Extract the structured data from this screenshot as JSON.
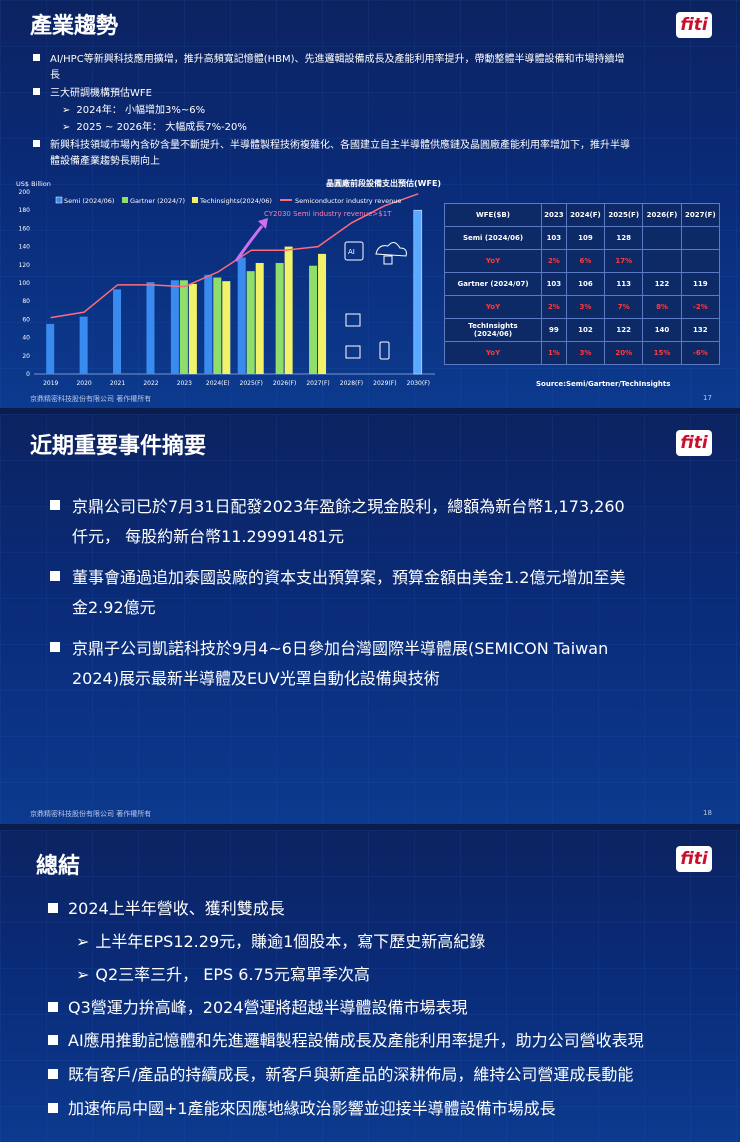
{
  "slide1": {
    "title": "產業趨勢",
    "bullets": [
      "AI/HPC等新興科技應用擴增，推升高頻寬記憶體(HBM)、先進邏輯設備成長及產能利用率提升，帶動整體半導體設備和市場持續增",
      "長",
      "三大研調機構預估WFE",
      "2024年： 小幅增加3%~6%",
      "2025 ~ 2026年： 大幅成長7%-20%",
      "新興科技領域市場內含矽含量不斷提升、半導體製程技術複雜化、各國建立自主半導體供應鏈及晶圓廠產能利用率增加下，推升半導",
      "體設備產業趨勢長期向上"
    ],
    "footer": "京鼎精密科技股份有限公司 著作權所有",
    "page": "17",
    "logo": "fiti"
  },
  "chart_data": {
    "type": "bar",
    "title": "晶圓廠前段設備支出預估(WFE)",
    "ylabel": "US$ Billion",
    "ylim": [
      0,
      200
    ],
    "yticks": [
      "0",
      "20",
      "40",
      "60",
      "80",
      "100",
      "120",
      "140",
      "160",
      "180",
      "200"
    ],
    "categories": [
      "2019",
      "2020",
      "2021",
      "2022",
      "2023",
      "2024(E)",
      "2025(F)",
      "2026(F)",
      "2027(F)",
      "2028(F)",
      "2029(F)",
      "2030(F)"
    ],
    "series": [
      {
        "name": "Semi (2024/06)",
        "color": "#3a8bf0",
        "values": [
          55,
          63,
          93,
          101,
          103,
          109,
          128,
          null,
          null,
          null,
          null,
          180
        ]
      },
      {
        "name": "Gartner (2024/7)",
        "color": "#8fdd6a",
        "values": [
          null,
          null,
          null,
          null,
          103,
          106,
          113,
          122,
          119,
          null,
          null,
          null
        ]
      },
      {
        "name": "Techinsights(2024/06)",
        "color": "#f2f26a",
        "values": [
          null,
          null,
          null,
          null,
          99,
          102,
          122,
          140,
          132,
          null,
          null,
          null
        ]
      }
    ],
    "line": {
      "name": "Semiconductor industry revenue",
      "color": "#ff6b7a",
      "values": [
        62,
        68,
        98,
        98,
        96,
        112,
        136,
        136,
        140,
        166,
        185,
        198
      ]
    },
    "annotation": "CY2030 Semi industry revenue>$1T",
    "legend_position": "top"
  },
  "table": {
    "headers": [
      "WFE($B)",
      "2023",
      "2024(F)",
      "2025(F)",
      "2026(F)",
      "2027(F)"
    ],
    "rows": [
      {
        "label": "Semi (2024/06)",
        "values": [
          "103",
          "109",
          "128",
          "",
          ""
        ],
        "yoy": [
          "2%",
          "6%",
          "17%",
          "",
          ""
        ]
      },
      {
        "label": "Gartner (2024/07)",
        "values": [
          "103",
          "106",
          "113",
          "122",
          "119"
        ],
        "yoy": [
          "2%",
          "3%",
          "7%",
          "8%",
          "-2%"
        ]
      },
      {
        "label": "TechInsights (2024/06)",
        "values": [
          "99",
          "102",
          "122",
          "140",
          "132"
        ],
        "yoy": [
          "1%",
          "3%",
          "20%",
          "15%",
          "-6%"
        ]
      }
    ],
    "yoy_label": "YoY",
    "source": "Source:Semi/Gartner/TechInsights"
  },
  "slide2": {
    "title": "近期重要事件摘要",
    "bullets": [
      [
        "京鼎公司已於7月31日配發2023年盈餘之現金股利，總額為新台幣1,173,260",
        "仟元， 每股約新台幣11.29991481元"
      ],
      [
        "董事會通過追加泰國設廠的資本支出預算案，預算金額由美金1.2億元增加至美",
        "金2.92億元"
      ],
      [
        "京鼎子公司凱諾科技於9月4~6日參加台灣國際半導體展(SEMICON Taiwan",
        "2024)展示最新半導體及EUV光罩自動化設備與技術"
      ]
    ],
    "footer": "京鼎精密科技股份有限公司 著作權所有",
    "page": "18"
  },
  "slide3": {
    "title": "總結",
    "items": [
      {
        "level": 1,
        "text": "2024上半年營收、獲利雙成長"
      },
      {
        "level": 2,
        "text": "上半年EPS12.29元，賺逾1個股本，寫下歷史新高紀錄"
      },
      {
        "level": 2,
        "text": "Q2三率三升， EPS 6.75元寫單季次高"
      },
      {
        "level": 1,
        "text": "Q3營運力拚高峰，2024營運將超越半導體設備市場表現"
      },
      {
        "level": 1,
        "text": "AI應用推動記憶體和先進邏輯製程設備成長及產能利用率提升，助力公司營收表現"
      },
      {
        "level": 1,
        "text": "既有客戶/產品的持續成長，新客戶與新產品的深耕佈局，維持公司營運成長動能"
      },
      {
        "level": 1,
        "text": "加速佈局中國+1產能來因應地緣政治影響並迎接半導體設備市場成長"
      }
    ]
  }
}
